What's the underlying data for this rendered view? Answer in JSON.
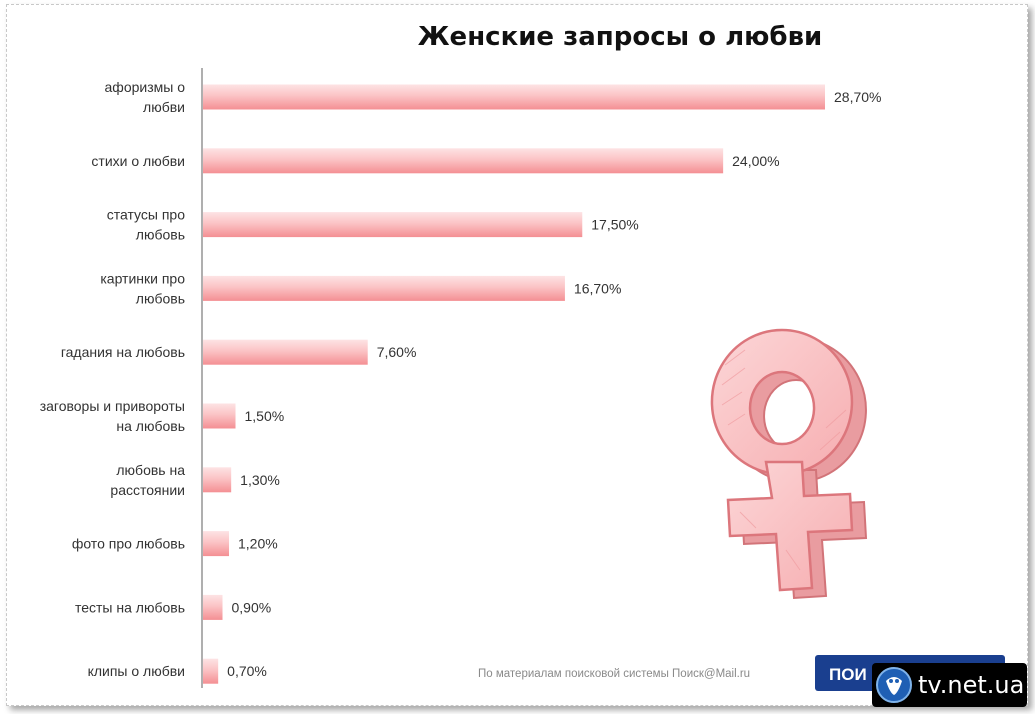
{
  "chart_data": {
    "type": "bar",
    "orientation": "horizontal",
    "title": "Женские запросы о любви",
    "categories": [
      [
        "афоризмы о",
        "любви"
      ],
      [
        "стихи о любви"
      ],
      [
        "статусы про",
        "любовь"
      ],
      [
        "картинки про",
        "любовь"
      ],
      [
        "гадания на любовь"
      ],
      [
        "заговоры и привороты",
        "на любовь"
      ],
      [
        "любовь на",
        "расстоянии"
      ],
      [
        "фото про любовь"
      ],
      [
        "тесты на любовь"
      ],
      [
        "клипы о любви"
      ]
    ],
    "values": [
      28.7,
      24.0,
      17.5,
      16.7,
      7.6,
      1.5,
      1.3,
      1.2,
      0.9,
      0.7
    ],
    "value_labels": [
      "28,70%",
      "24,00%",
      "17,50%",
      "16,70%",
      "7,60%",
      "1,50%",
      "1,30%",
      "1,20%",
      "0,90%",
      "0,70%"
    ],
    "xlim": [
      0,
      30
    ],
    "bar_color": "#f7a8aa",
    "grid": false
  },
  "source_note": "По материалам поисковой системы Поиск@Mail.ru",
  "brand_button_label": "ПОИ",
  "watermark_text": "tv.net.ua",
  "colors": {
    "bar": "#f7a8aa",
    "bar_light": "#fde3e4",
    "symbol_fill": "#f9c2c4",
    "symbol_edge": "#e07d82",
    "brand_blue": "#1a3f8f"
  },
  "icons": {
    "symbol": "venus-female-icon",
    "watermark_logo": "tv-logo-icon"
  }
}
